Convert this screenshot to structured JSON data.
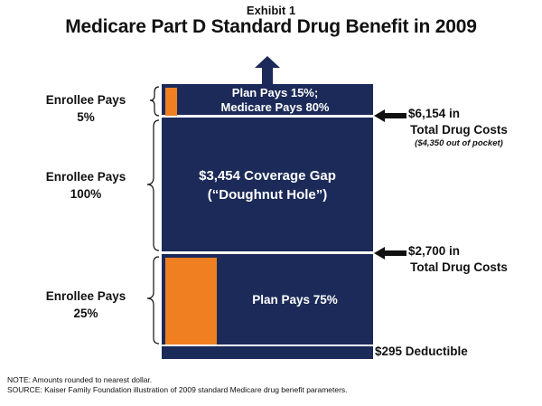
{
  "header": {
    "exhibit": "Exhibit 1",
    "title": "Medicare Part D Standard Drug Benefit in 2009"
  },
  "left_labels": {
    "top": [
      "Enrollee Pays",
      "5%"
    ],
    "middle": [
      "Enrollee Pays",
      "100%"
    ],
    "bottom": [
      "Enrollee Pays",
      "25%"
    ]
  },
  "segments": {
    "top": [
      "Plan Pays 15%;",
      "Medicare Pays 80%"
    ],
    "gap": [
      "$3,454 Coverage Gap",
      "(“Doughnut Hole”)"
    ],
    "bottom": "Plan Pays 75%",
    "deductible": "$295 Deductible"
  },
  "right_labels": {
    "upper": {
      "amount": "$6,154 in",
      "sub": "Total Drug Costs",
      "note": "($4,350 out of pocket)"
    },
    "lower": {
      "amount": "$2,700 in",
      "sub": "Total Drug Costs"
    }
  },
  "notes": [
    "NOTE:  Amounts rounded to nearest dollar.",
    "SOURCE:  Kaiser Family Foundation illustration of 2009 standard Medicare drug benefit parameters."
  ],
  "colors": {
    "navy": "#1b2a58",
    "orange": "#f07f21"
  }
}
